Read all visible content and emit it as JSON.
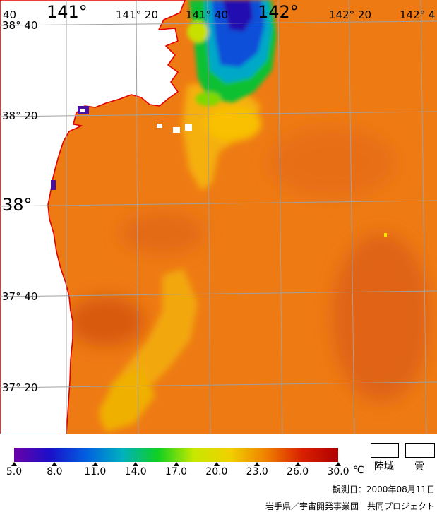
{
  "map": {
    "lon_labels": [
      "40",
      "141°",
      "141° 20",
      "141° 40",
      "142°",
      "142° 20",
      "142° 4"
    ],
    "lat_labels": [
      "38° 40",
      "38° 20",
      "38°",
      "37° 40",
      "37° 20"
    ]
  },
  "colorbar": {
    "ticks": [
      "5.0",
      "8.0",
      "11.0",
      "14.0",
      "17.0",
      "20.0",
      "23.0",
      "26.0",
      "30.0"
    ],
    "unit": "℃",
    "stops": [
      "#6a00a8",
      "#1a10c8",
      "#0060e0",
      "#00b0c0",
      "#10d020",
      "#c8e800",
      "#f0d000",
      "#f08000",
      "#d82000",
      "#b00000"
    ]
  },
  "legend": {
    "land_label": "陸域",
    "cloud_label": "雲"
  },
  "footer": {
    "observation_date": "観測日：2000年08月11日",
    "credit": "岩手県／宇宙開発事業団　共同プロジェクト"
  },
  "colors": {
    "coastline": "#e00000",
    "grid": "#a0a0a0",
    "sea_base": "#ef7a14"
  }
}
